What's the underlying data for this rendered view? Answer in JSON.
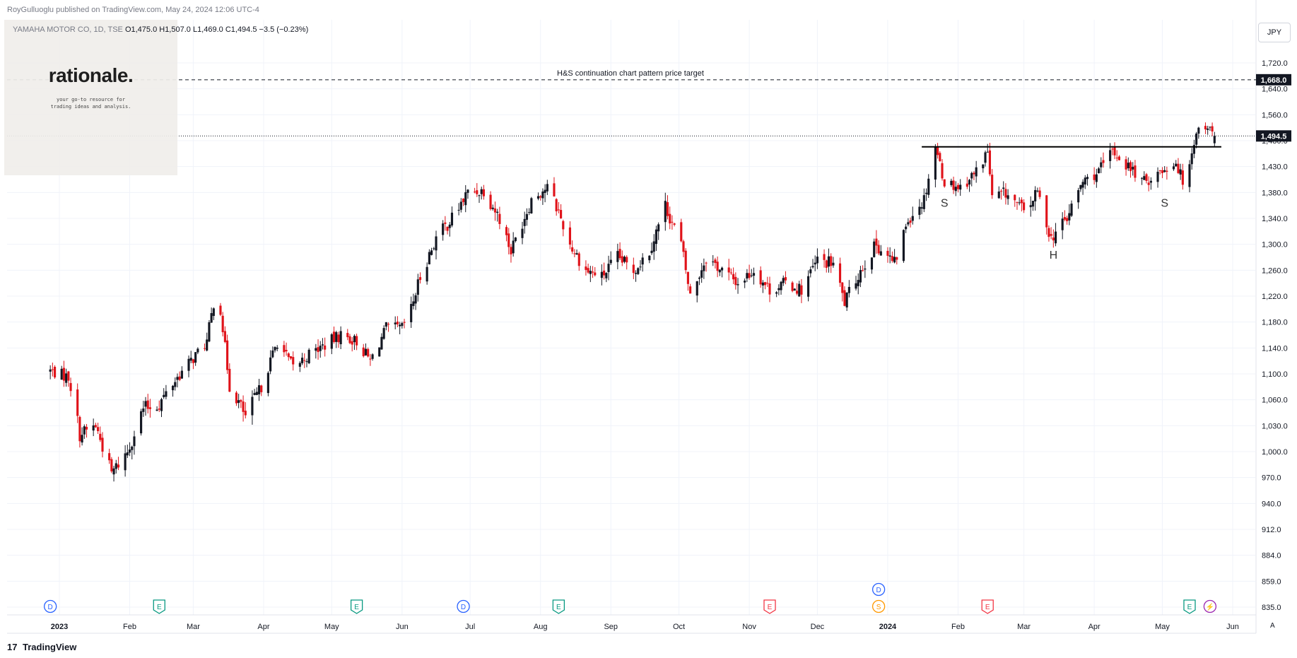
{
  "header": {
    "published": "RoyGulluoglu published on TradingView.com, May 24, 2024 12:06 UTC-4",
    "symbol": "YAMAHA MOTOR CO, 1D, TSE",
    "ohlc": "O1,475.0  H1,507.0  L1,469.0  C1,494.5  −3.5 (−0.23%)"
  },
  "watermark": {
    "title": "rationale.",
    "subtitle": "your go-to resource for trading ideas and analysis."
  },
  "currency": "JPY",
  "footer": {
    "brand": "TradingView",
    "auto_label": "A"
  },
  "colors": {
    "up": "#131722",
    "down": "#e0131a",
    "grid": "#f0f3fa",
    "axis_text": "#131722",
    "event_dividend": "#2962ff",
    "event_earnings_green": "#089981",
    "event_earnings_red": "#f23645",
    "event_split": "#ff9800",
    "event_flash": "#9c27b0"
  },
  "chart_data": {
    "type": "candlestick",
    "title": "",
    "y_ticks": [
      835,
      859,
      884,
      912,
      940,
      970,
      1000,
      1030,
      1060,
      1100,
      1140,
      1180,
      1220,
      1260,
      1300,
      1340,
      1380,
      1430,
      1480,
      1560,
      1640,
      1720
    ],
    "y_tick_labels": [
      "835.0",
      "859.0",
      "884.0",
      "912.0",
      "940.0",
      "970.0",
      "1,000.0",
      "1,030.0",
      "1,060.0",
      "1,100.0",
      "1,140.0",
      "1,180.0",
      "1,220.0",
      "1,260.0",
      "1,300.0",
      "1,340.0",
      "1,380.0",
      "1,430.0",
      "1,480.0",
      "1,560.0",
      "1,640.0",
      "1,720.0"
    ],
    "x_ticks": [
      {
        "label": "2023",
        "date": "2023-01-01",
        "bold": true
      },
      {
        "label": "Feb",
        "date": "2023-02-01"
      },
      {
        "label": "Mar",
        "date": "2023-03-01"
      },
      {
        "label": "Apr",
        "date": "2023-04-01"
      },
      {
        "label": "May",
        "date": "2023-05-01"
      },
      {
        "label": "Jun",
        "date": "2023-06-01"
      },
      {
        "label": "Jul",
        "date": "2023-07-01"
      },
      {
        "label": "Aug",
        "date": "2023-08-01"
      },
      {
        "label": "Sep",
        "date": "2023-09-01"
      },
      {
        "label": "Oct",
        "date": "2023-10-01"
      },
      {
        "label": "Nov",
        "date": "2023-11-01"
      },
      {
        "label": "Dec",
        "date": "2023-12-01"
      },
      {
        "label": "2024",
        "date": "2024-01-01",
        "bold": true
      },
      {
        "label": "Feb",
        "date": "2024-02-01"
      },
      {
        "label": "Mar",
        "date": "2024-03-01"
      },
      {
        "label": "Apr",
        "date": "2024-04-01"
      },
      {
        "label": "May",
        "date": "2024-05-01"
      },
      {
        "label": "Jun",
        "date": "2024-06-01"
      }
    ],
    "waypoints": [
      [
        "2022-12-28",
        1105
      ],
      [
        "2023-01-05",
        1095
      ],
      [
        "2023-01-10",
        1020
      ],
      [
        "2023-01-17",
        1030
      ],
      [
        "2023-01-24",
        975
      ],
      [
        "2023-01-31",
        1000
      ],
      [
        "2023-02-07",
        1050
      ],
      [
        "2023-02-14",
        1055
      ],
      [
        "2023-02-21",
        1090
      ],
      [
        "2023-02-28",
        1120
      ],
      [
        "2023-03-07",
        1150
      ],
      [
        "2023-03-10",
        1210
      ],
      [
        "2023-03-13",
        1200
      ],
      [
        "2023-03-17",
        1080
      ],
      [
        "2023-03-24",
        1040
      ],
      [
        "2023-03-31",
        1080
      ],
      [
        "2023-04-07",
        1150
      ],
      [
        "2023-04-14",
        1110
      ],
      [
        "2023-04-21",
        1130
      ],
      [
        "2023-04-28",
        1145
      ],
      [
        "2023-05-05",
        1160
      ],
      [
        "2023-05-12",
        1150
      ],
      [
        "2023-05-18",
        1120
      ],
      [
        "2023-05-25",
        1170
      ],
      [
        "2023-06-01",
        1170
      ],
      [
        "2023-06-05",
        1200
      ],
      [
        "2023-06-09",
        1250
      ],
      [
        "2023-06-16",
        1310
      ],
      [
        "2023-06-23",
        1340
      ],
      [
        "2023-06-30",
        1380
      ],
      [
        "2023-07-07",
        1385
      ],
      [
        "2023-07-14",
        1340
      ],
      [
        "2023-07-19",
        1290
      ],
      [
        "2023-07-28",
        1370
      ],
      [
        "2023-08-04",
        1390
      ],
      [
        "2023-08-09",
        1350
      ],
      [
        "2023-08-14",
        1300
      ],
      [
        "2023-08-21",
        1260
      ],
      [
        "2023-08-28",
        1250
      ],
      [
        "2023-09-04",
        1280
      ],
      [
        "2023-09-11",
        1260
      ],
      [
        "2023-09-18",
        1290
      ],
      [
        "2023-09-25",
        1360
      ],
      [
        "2023-10-02",
        1300
      ],
      [
        "2023-10-06",
        1220
      ],
      [
        "2023-10-13",
        1280
      ],
      [
        "2023-10-20",
        1260
      ],
      [
        "2023-10-27",
        1240
      ],
      [
        "2023-11-03",
        1260
      ],
      [
        "2023-11-10",
        1230
      ],
      [
        "2023-11-17",
        1240
      ],
      [
        "2023-11-24",
        1230
      ],
      [
        "2023-12-01",
        1275
      ],
      [
        "2023-12-08",
        1270
      ],
      [
        "2023-12-13",
        1210
      ],
      [
        "2023-12-20",
        1260
      ],
      [
        "2023-12-27",
        1300
      ],
      [
        "2024-01-04",
        1270
      ],
      [
        "2024-01-10",
        1340
      ],
      [
        "2024-01-17",
        1370
      ],
      [
        "2024-01-22",
        1470
      ],
      [
        "2024-01-26",
        1400
      ],
      [
        "2024-02-02",
        1390
      ],
      [
        "2024-02-09",
        1420
      ],
      [
        "2024-02-14",
        1460
      ],
      [
        "2024-02-16",
        1370
      ],
      [
        "2024-02-22",
        1380
      ],
      [
        "2024-03-01",
        1350
      ],
      [
        "2024-03-07",
        1380
      ],
      [
        "2024-03-13",
        1310
      ],
      [
        "2024-03-20",
        1340
      ],
      [
        "2024-03-27",
        1400
      ],
      [
        "2024-04-03",
        1420
      ],
      [
        "2024-04-09",
        1460
      ],
      [
        "2024-04-16",
        1430
      ],
      [
        "2024-04-23",
        1400
      ],
      [
        "2024-04-30",
        1420
      ],
      [
        "2024-05-07",
        1440
      ],
      [
        "2024-05-10",
        1400
      ],
      [
        "2024-05-14",
        1460
      ],
      [
        "2024-05-17",
        1520
      ],
      [
        "2024-05-21",
        1525
      ],
      [
        "2024-05-24",
        1494.5
      ]
    ],
    "last_price": 1494.5,
    "last_price_label": "1,494.5",
    "target_price": 1668,
    "target_price_label": "1,668.0",
    "target_text": "H&S continuation chart pattern price target",
    "neckline": {
      "price": 1468,
      "from": "2024-01-16",
      "to": "2024-05-27"
    },
    "pattern_labels": [
      {
        "text": "S",
        "date": "2024-01-26",
        "price": 1358
      },
      {
        "text": "H",
        "date": "2024-03-14",
        "price": 1278
      },
      {
        "text": "S",
        "date": "2024-05-02",
        "price": 1358
      }
    ],
    "events": [
      {
        "letter": "D",
        "date": "2022-12-28",
        "type": "dividend"
      },
      {
        "letter": "E",
        "date": "2023-02-14",
        "type": "earnings_green"
      },
      {
        "letter": "E",
        "date": "2023-05-12",
        "type": "earnings_green"
      },
      {
        "letter": "D",
        "date": "2023-06-28",
        "type": "dividend"
      },
      {
        "letter": "E",
        "date": "2023-08-09",
        "type": "earnings_green"
      },
      {
        "letter": "E",
        "date": "2023-11-10",
        "type": "earnings_red"
      },
      {
        "letter": "D",
        "date": "2023-12-28",
        "type": "dividend",
        "row": 2
      },
      {
        "letter": "S",
        "date": "2023-12-28",
        "type": "split"
      },
      {
        "letter": "E",
        "date": "2024-02-14",
        "type": "earnings_red"
      },
      {
        "letter": "E",
        "date": "2024-05-13",
        "type": "earnings_green"
      },
      {
        "letter": "⚡",
        "date": "2024-05-22",
        "type": "flash"
      }
    ]
  }
}
